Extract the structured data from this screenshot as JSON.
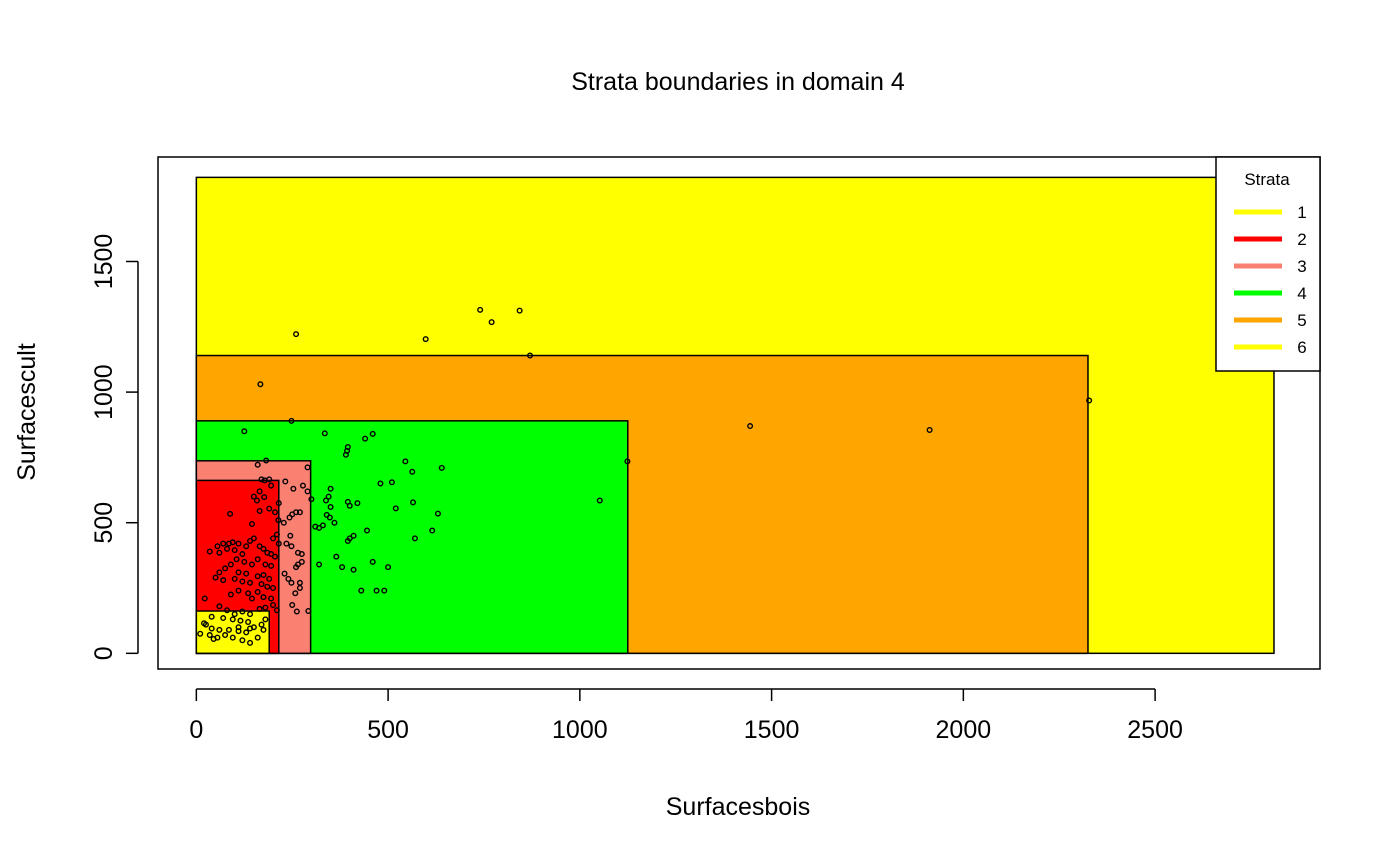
{
  "chart_data": {
    "type": "scatter",
    "title": "Strata boundaries in domain 4",
    "xlabel": "Surfacesbois",
    "ylabel": "Surfacescult",
    "xlim": [
      -100,
      2930
    ],
    "ylim": [
      -60,
      1900
    ],
    "xticks": [
      0,
      500,
      1000,
      1500,
      2000,
      2500
    ],
    "yticks": [
      0,
      500,
      1000,
      1500
    ],
    "legend": {
      "title": "Strata",
      "position": "top-right",
      "entries": [
        {
          "label": "1",
          "color": "#FFFF00"
        },
        {
          "label": "2",
          "color": "#FF0000"
        },
        {
          "label": "3",
          "color": "#FA8072"
        },
        {
          "label": "4",
          "color": "#00FF00"
        },
        {
          "label": "5",
          "color": "#FFA500"
        },
        {
          "label": "6",
          "color": "#FFFF00"
        }
      ]
    },
    "strata_boxes": [
      {
        "stratum": "6",
        "color": "#FFFF00",
        "x_max": 2810,
        "y_max": 1822
      },
      {
        "stratum": "5",
        "color": "#FFA500",
        "x_max": 2325,
        "y_max": 1140
      },
      {
        "stratum": "4",
        "color": "#00FF00",
        "x_max": 1125,
        "y_max": 890
      },
      {
        "stratum": "3",
        "color": "#FA8072",
        "x_max": 298,
        "y_max": 737
      },
      {
        "stratum": "2",
        "color": "#FF0000",
        "x_max": 215,
        "y_max": 662
      },
      {
        "stratum": "1",
        "color": "#FFFF00",
        "x_max": 190,
        "y_max": 162
      }
    ],
    "points": [
      [
        740,
        1315
      ],
      [
        843,
        1312
      ],
      [
        770,
        1268
      ],
      [
        260,
        1222
      ],
      [
        598,
        1203
      ],
      [
        870,
        1140
      ],
      [
        167,
        1030
      ],
      [
        2328,
        968
      ],
      [
        1444,
        870
      ],
      [
        1912,
        855
      ],
      [
        248,
        890
      ],
      [
        125,
        850
      ],
      [
        335,
        842
      ],
      [
        460,
        840
      ],
      [
        440,
        822
      ],
      [
        395,
        790
      ],
      [
        393,
        775
      ],
      [
        390,
        760
      ],
      [
        160,
        722
      ],
      [
        182,
        738
      ],
      [
        290,
        712
      ],
      [
        545,
        735
      ],
      [
        640,
        710
      ],
      [
        563,
        695
      ],
      [
        1124,
        735
      ],
      [
        1052,
        585
      ],
      [
        300,
        590
      ],
      [
        232,
        658
      ],
      [
        278,
        642
      ],
      [
        253,
        630
      ],
      [
        290,
        620
      ],
      [
        170,
        666
      ],
      [
        190,
        666
      ],
      [
        178,
        662
      ],
      [
        195,
        642
      ],
      [
        165,
        620
      ],
      [
        150,
        600
      ],
      [
        177,
        598
      ],
      [
        215,
        575
      ],
      [
        158,
        585
      ],
      [
        190,
        554
      ],
      [
        165,
        545
      ],
      [
        205,
        540
      ],
      [
        260,
        540
      ],
      [
        270,
        540
      ],
      [
        250,
        532
      ],
      [
        243,
        520
      ],
      [
        214,
        510
      ],
      [
        228,
        500
      ],
      [
        145,
        495
      ],
      [
        88,
        534
      ],
      [
        350,
        630
      ],
      [
        345,
        600
      ],
      [
        338,
        585
      ],
      [
        395,
        580
      ],
      [
        420,
        575
      ],
      [
        400,
        565
      ],
      [
        350,
        560
      ],
      [
        340,
        530
      ],
      [
        348,
        520
      ],
      [
        320,
        480
      ],
      [
        360,
        500
      ],
      [
        330,
        490
      ],
      [
        310,
        485
      ],
      [
        480,
        650
      ],
      [
        510,
        655
      ],
      [
        520,
        555
      ],
      [
        565,
        578
      ],
      [
        630,
        535
      ],
      [
        615,
        470
      ],
      [
        445,
        470
      ],
      [
        400,
        440
      ],
      [
        395,
        430
      ],
      [
        410,
        450
      ],
      [
        570,
        440
      ],
      [
        460,
        350
      ],
      [
        500,
        330
      ],
      [
        365,
        370
      ],
      [
        380,
        330
      ],
      [
        410,
        320
      ],
      [
        430,
        240
      ],
      [
        470,
        240
      ],
      [
        490,
        240
      ],
      [
        320,
        340
      ],
      [
        245,
        450
      ],
      [
        275,
        380
      ],
      [
        265,
        385
      ],
      [
        265,
        340
      ],
      [
        248,
        410
      ],
      [
        235,
        420
      ],
      [
        210,
        455
      ],
      [
        200,
        440
      ],
      [
        215,
        420
      ],
      [
        275,
        350
      ],
      [
        260,
        330
      ],
      [
        270,
        270
      ],
      [
        270,
        250
      ],
      [
        240,
        285
      ],
      [
        230,
        305
      ],
      [
        248,
        270
      ],
      [
        258,
        230
      ],
      [
        250,
        185
      ],
      [
        262,
        160
      ],
      [
        292,
        162
      ],
      [
        22,
        210
      ],
      [
        35,
        390
      ],
      [
        55,
        410
      ],
      [
        70,
        420
      ],
      [
        85,
        420
      ],
      [
        95,
        425
      ],
      [
        110,
        420
      ],
      [
        60,
        385
      ],
      [
        80,
        400
      ],
      [
        100,
        395
      ],
      [
        130,
        410
      ],
      [
        140,
        430
      ],
      [
        150,
        440
      ],
      [
        165,
        410
      ],
      [
        175,
        400
      ],
      [
        185,
        385
      ],
      [
        195,
        380
      ],
      [
        205,
        370
      ],
      [
        120,
        380
      ],
      [
        105,
        360
      ],
      [
        125,
        350
      ],
      [
        145,
        340
      ],
      [
        160,
        360
      ],
      [
        180,
        340
      ],
      [
        195,
        335
      ],
      [
        90,
        340
      ],
      [
        75,
        325
      ],
      [
        60,
        310
      ],
      [
        110,
        310
      ],
      [
        130,
        305
      ],
      [
        160,
        295
      ],
      [
        175,
        300
      ],
      [
        190,
        285
      ],
      [
        100,
        285
      ],
      [
        120,
        275
      ],
      [
        140,
        270
      ],
      [
        170,
        265
      ],
      [
        185,
        255
      ],
      [
        200,
        250
      ],
      [
        110,
        240
      ],
      [
        90,
        225
      ],
      [
        135,
        230
      ],
      [
        160,
        235
      ],
      [
        145,
        210
      ],
      [
        175,
        215
      ],
      [
        195,
        210
      ],
      [
        70,
        280
      ],
      [
        50,
        290
      ],
      [
        60,
        180
      ],
      [
        80,
        165
      ],
      [
        100,
        150
      ],
      [
        120,
        160
      ],
      [
        140,
        150
      ],
      [
        165,
        170
      ],
      [
        180,
        175
      ],
      [
        200,
        185
      ],
      [
        210,
        165
      ],
      [
        40,
        140
      ],
      [
        70,
        135
      ],
      [
        95,
        130
      ],
      [
        115,
        125
      ],
      [
        135,
        120
      ],
      [
        150,
        100
      ],
      [
        110,
        100
      ],
      [
        85,
        90
      ],
      [
        60,
        90
      ],
      [
        40,
        95
      ],
      [
        25,
        110
      ],
      [
        10,
        75
      ],
      [
        35,
        70
      ],
      [
        55,
        60
      ],
      [
        75,
        70
      ],
      [
        95,
        60
      ],
      [
        120,
        50
      ],
      [
        140,
        40
      ],
      [
        160,
        60
      ],
      [
        45,
        55
      ],
      [
        130,
        80
      ],
      [
        110,
        85
      ],
      [
        170,
        110
      ],
      [
        180,
        130
      ],
      [
        20,
        115
      ],
      [
        175,
        90
      ],
      [
        140,
        95
      ]
    ]
  }
}
